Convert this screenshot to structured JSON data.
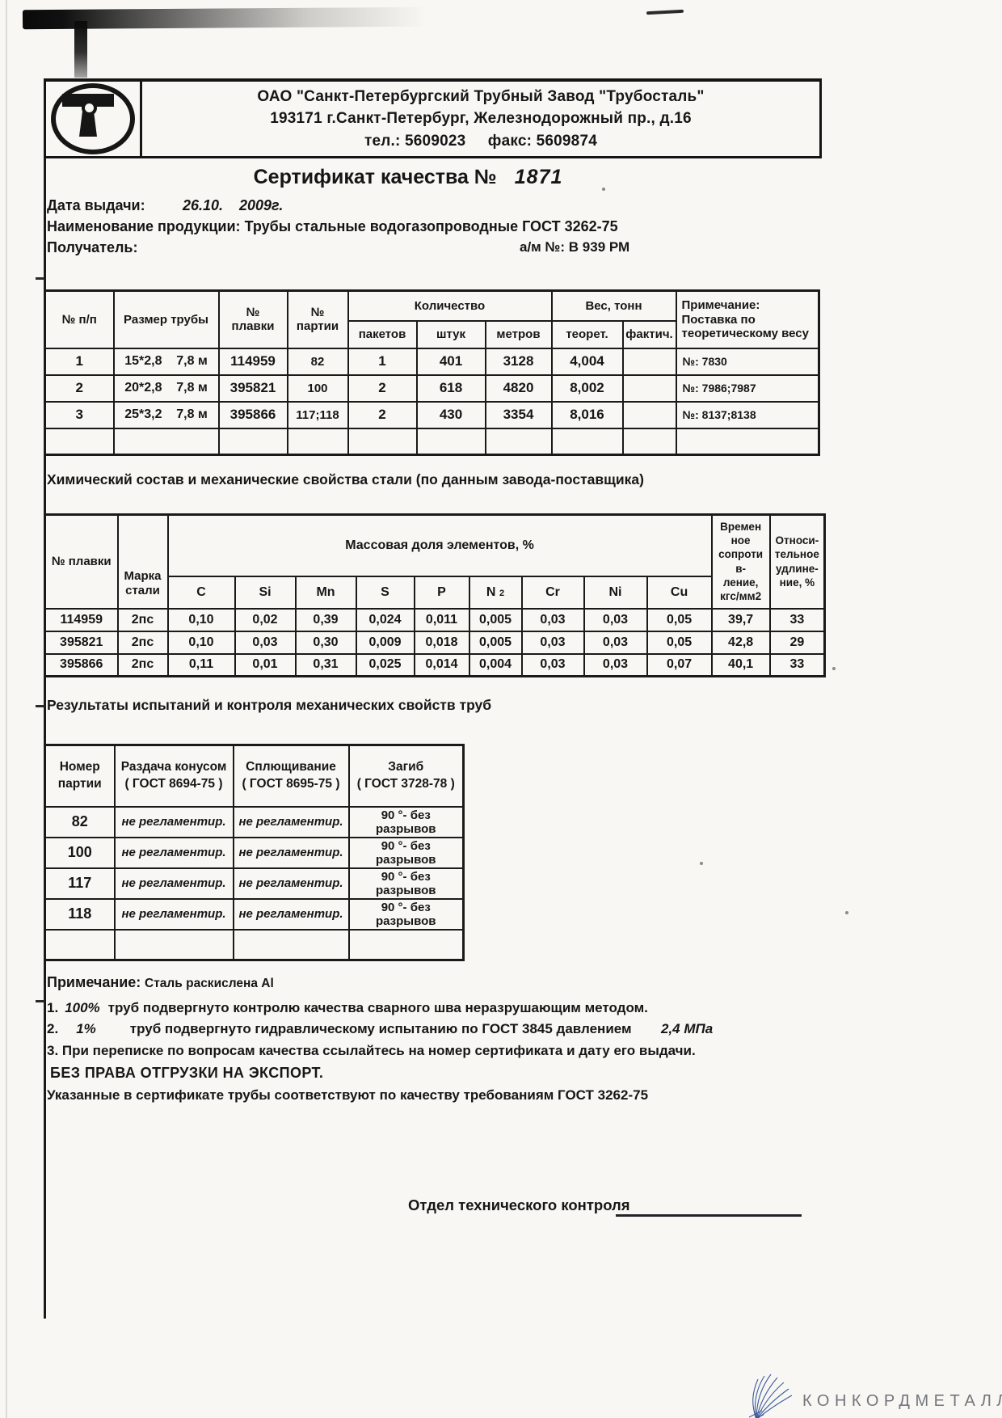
{
  "scan": {
    "paper_color": "#f8f7f3",
    "ink_color": "#161616",
    "logo_blue": "#3c5a9d",
    "watermark_gray": "#73767c"
  },
  "header": {
    "logo_icon": "tt-oval-monogram",
    "company_line1": "ОАО \"Санкт-Петербургский Трубный Завод \"Трубосталь\"",
    "company_line2": "193171   г.Санкт-Петербург, Железнодорожный пр., д.16",
    "company_line3": "тел.: 5609023     факс: 5609874"
  },
  "certificate": {
    "title_label": "Сертификат качества №",
    "number": "1871",
    "date_label": "Дата выдачи:",
    "date_day": "26.10.",
    "date_year": "2009г.",
    "product_label": "Наименование продукции:",
    "product_value": "Трубы стальные водогазопроводные ГОСТ 3262-75",
    "receiver_label": "Получатель:",
    "vehicle_note": "а/м №: В 939 РМ"
  },
  "shipment_table": {
    "h_num": "№ п/п",
    "h_size": "Размер трубы",
    "h_melt": "№\nплавки",
    "h_batch": "№\nпартии",
    "h_qty": "Количество",
    "h_qty_packs": "пакетов",
    "h_qty_pieces": "штук",
    "h_qty_meters": "метров",
    "h_weight": "Вес, тонн",
    "h_weight_theor": "теорет.",
    "h_weight_fact": "фактич.",
    "h_note": "Примечание: Поставка по теоретическому весу",
    "rows": [
      [
        "1",
        "15*2,8    7,8 м",
        "114959",
        "82",
        "1",
        "401",
        "3128",
        "4,004",
        "",
        "№: 7830"
      ],
      [
        "2",
        "20*2,8    7,8 м",
        "395821",
        "100",
        "2",
        "618",
        "4820",
        "8,002",
        "",
        "№: 7986;7987"
      ],
      [
        "3",
        "25*3,2    7,8 м",
        "395866",
        "117;118",
        "2",
        "430",
        "3354",
        "8,016",
        "",
        "№: 8137;8138"
      ],
      [
        "",
        "",
        "",
        "",
        "",
        "",
        "",
        "",
        "",
        ""
      ]
    ]
  },
  "sections": {
    "chemistry_title": "Химический состав и механические свойства стали (по данным завода-поставщика)",
    "tests_title": "Результаты испытаний  и контроля механических свойств труб"
  },
  "chemistry_table": {
    "h_melt": "№ плавки",
    "h_grade": "Марка\nстали",
    "h_mass_share": "Массовая доля элементов, %",
    "elements": [
      "C",
      "Si",
      "Mn",
      "S",
      "P",
      "N",
      "Cr",
      "Ni",
      "Cu"
    ],
    "n_subscript": "2",
    "h_strength": "Времен\nное\nсопроти\nв-\nление,\nкгс/мм2",
    "h_elongation": "Относи-\nтельное\nудлине-\nние, %",
    "rows": [
      [
        "114959",
        "2пс",
        "0,10",
        "0,02",
        "0,39",
        "0,024",
        "0,011",
        "0,005",
        "0,03",
        "0,03",
        "0,05",
        "39,7",
        "33"
      ],
      [
        "395821",
        "2пс",
        "0,10",
        "0,03",
        "0,30",
        "0,009",
        "0,018",
        "0,005",
        "0,03",
        "0,03",
        "0,05",
        "42,8",
        "29"
      ],
      [
        "395866",
        "2пс",
        "0,11",
        "0,01",
        "0,31",
        "0,025",
        "0,014",
        "0,004",
        "0,03",
        "0,03",
        "0,07",
        "40,1",
        "33"
      ]
    ]
  },
  "tests_table": {
    "h_batch": "Номер\nпартии",
    "h_cone": "Раздача конусом\n( ГОСТ 8694-75 )",
    "h_flatten": "Сплющивание\n( ГОСТ 8695-75 )",
    "h_bend": "Загиб\n( ГОСТ 3728-78 )",
    "rows": [
      [
        "82",
        "не регламентир.",
        "не регламентир.",
        "90 °- без разрывов"
      ],
      [
        "100",
        "не регламентир.",
        "не регламентир.",
        "90 °- без разрывов"
      ],
      [
        "117",
        "не регламентир.",
        "не регламентир.",
        "90 °- без разрывов"
      ],
      [
        "118",
        "не регламентир.",
        "не регламентир.",
        "90 °- без разрывов"
      ],
      [
        "",
        "",
        "",
        ""
      ]
    ]
  },
  "notes": {
    "label": "Примечание:",
    "steel": "Сталь  раскислена Al",
    "n1_num": "1.",
    "n1_pct": "100%",
    "n1_text": "труб подвергнуто контролю качества сварного шва неразрушающим методом.",
    "n2_num": "2.",
    "n2_pct": "1%",
    "n2_text": "труб подвергнуто гидравлическому испытанию по ГОСТ 3845 давлением",
    "n2_pressure": "2,4 МПа",
    "n3": "3. При переписке по вопросам качества ссылайтесь на номер сертификата и дату его выдачи.",
    "n4": "БЕЗ ПРАВА ОТГРУЗКИ НА ЭКСПОРТ.",
    "n5": "Указанные в сертификате трубы соответствуют по  качеству требованиям ГОСТ 3262-75"
  },
  "footer": {
    "otk_label": "Отдел технического контроля",
    "watermark": "КОНКОРДМЕТАЛЛ"
  }
}
